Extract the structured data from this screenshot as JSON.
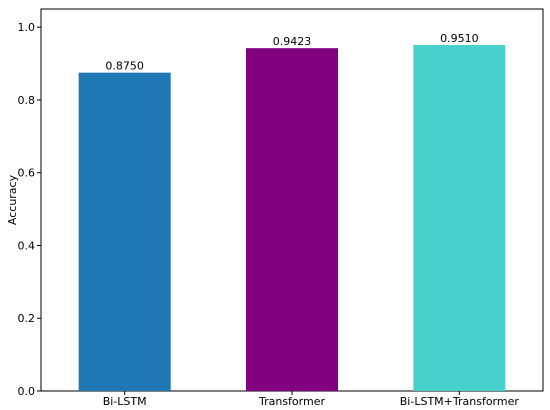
{
  "chart_data": {
    "type": "bar",
    "categories": [
      "Bi-LSTM",
      "Transformer",
      "Bi-LSTM+Transformer"
    ],
    "values": [
      0.875,
      0.9423,
      0.951
    ],
    "value_labels": [
      "0.8750",
      "0.9423",
      "0.9510"
    ],
    "colors": [
      "#1f77b4",
      "#800080",
      "#48d1cc"
    ],
    "title": "",
    "xlabel": "",
    "ylabel": "Accuracy",
    "ylim": [
      0,
      1.05
    ],
    "yticks": [
      0.0,
      0.2,
      0.4,
      0.6,
      0.8,
      1.0
    ],
    "ytick_labels": [
      "0.0",
      "0.2",
      "0.4",
      "0.6",
      "0.8",
      "1.0"
    ],
    "grid": false,
    "legend": "none"
  }
}
